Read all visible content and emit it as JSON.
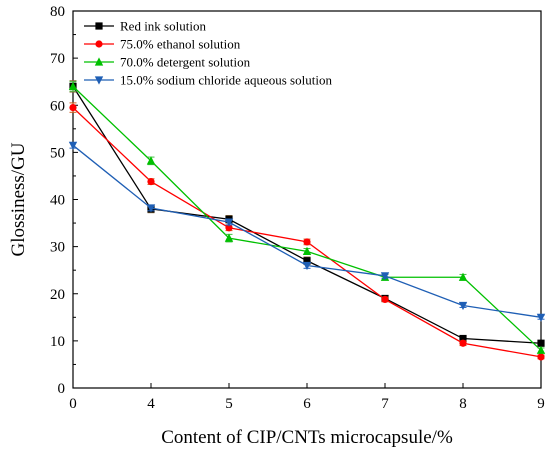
{
  "chart_data": {
    "type": "line",
    "xlabel": "Content of CIP/CNTs microcapsule/%",
    "ylabel": "Glossiness/GU",
    "categories": [
      "0",
      "4",
      "5",
      "6",
      "7",
      "8",
      "9"
    ],
    "ylim": [
      0,
      80
    ],
    "yticks": [
      0,
      10,
      20,
      30,
      40,
      50,
      60,
      70,
      80
    ],
    "grid": false,
    "legend_position": "top-left",
    "series": [
      {
        "name": "Red ink solution",
        "color": "#000000",
        "marker": "square",
        "values": [
          64.0,
          38.0,
          35.8,
          27.0,
          19.0,
          10.5,
          9.5
        ],
        "errors": [
          1.2,
          0.8,
          0.8,
          0.8,
          0.6,
          0.5,
          0.5
        ]
      },
      {
        "name": "75.0% ethanol solution",
        "color": "#ff0000",
        "marker": "circle",
        "values": [
          59.5,
          43.8,
          34.0,
          31.0,
          18.8,
          9.5,
          6.6
        ],
        "errors": [
          1.0,
          0.6,
          0.6,
          0.6,
          0.5,
          0.5,
          0.4
        ]
      },
      {
        "name": "70.0% detergent solution",
        "color": "#00c000",
        "marker": "triangle-up",
        "values": [
          64.0,
          48.2,
          31.8,
          29.0,
          23.5,
          23.5,
          8.0
        ],
        "errors": [
          1.0,
          0.8,
          0.8,
          0.6,
          0.6,
          0.6,
          0.5
        ]
      },
      {
        "name": "15.0% sodium chloride aqueous solution",
        "color": "#1f5fb5",
        "marker": "triangle-down",
        "values": [
          51.5,
          38.2,
          35.2,
          26.0,
          23.8,
          17.5,
          15.0
        ],
        "errors": [
          0.6,
          0.6,
          0.6,
          0.6,
          0.5,
          0.4,
          0.4
        ]
      }
    ]
  }
}
